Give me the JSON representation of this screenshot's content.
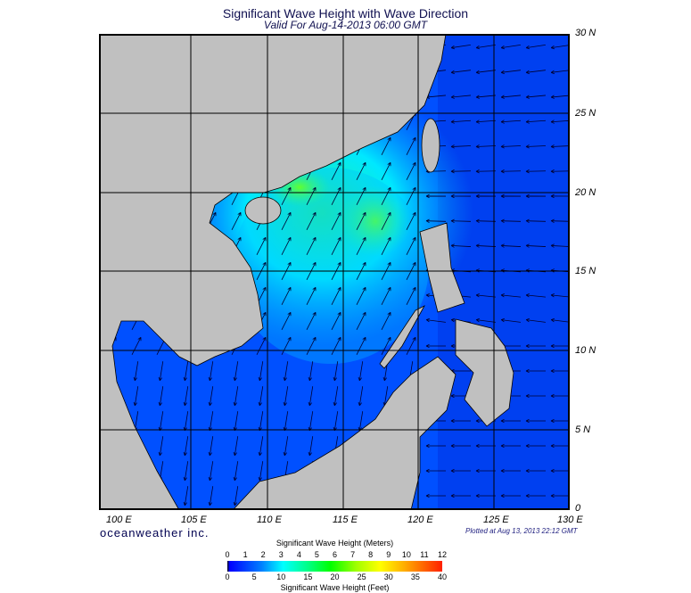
{
  "title": "Significant Wave Height with Wave Direction",
  "valid": "Valid For Aug-14-2013 06:00 GMT",
  "lat_labels": [
    "30 N",
    "25 N",
    "20 N",
    "15 N",
    "10 N",
    "5 N",
    "0"
  ],
  "lon_labels": [
    "100 E",
    "105 E",
    "110 E",
    "115 E",
    "120 E",
    "125 E",
    "130 E"
  ],
  "brand": "oceanweather inc.",
  "plotted": "Plotted at Aug 13, 2013 22:12 GMT",
  "colorbar": {
    "meters_title": "Significant Wave Height (Meters)",
    "meters_ticks": [
      "0",
      "1",
      "2",
      "3",
      "4",
      "5",
      "6",
      "7",
      "8",
      "9",
      "10",
      "11",
      "12"
    ],
    "feet_title": "Significant Wave Height (Feet)",
    "feet_ticks": [
      "0",
      "5",
      "10",
      "15",
      "20",
      "25",
      "30",
      "35",
      "40"
    ]
  },
  "colors": {
    "land": "#c0c0c0",
    "ocean": "#0050ff",
    "peak": "#40e020"
  }
}
